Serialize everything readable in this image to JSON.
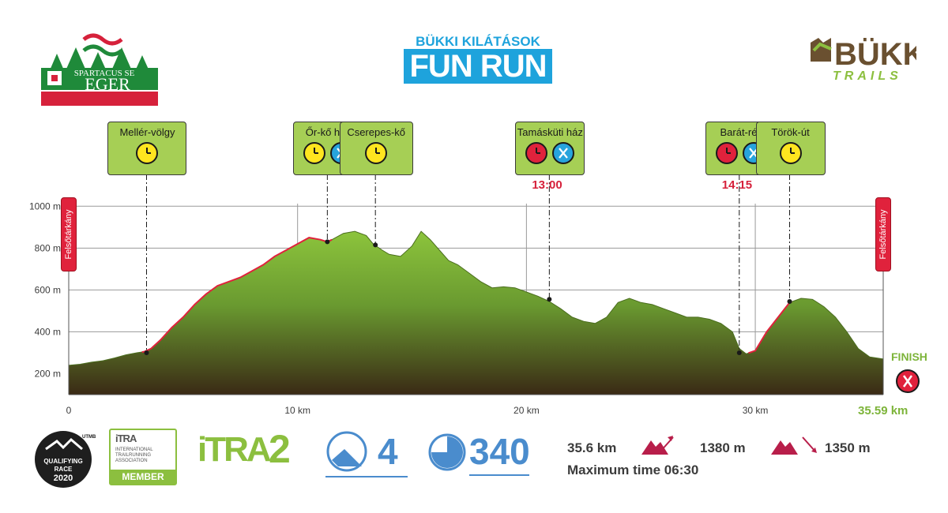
{
  "header": {
    "club_logo": {
      "text_1": "SPARTACUS SE",
      "text_2": "EGER"
    },
    "title_sub": "BÜKKI KILÁTÁSOK",
    "title_main": "FUN RUN",
    "trails_logo": {
      "text_1": "BÜKK",
      "text_2": "TRAILS"
    }
  },
  "colors": {
    "profile_top": "#8cc43c",
    "profile_bottom": "#3a2a15",
    "climb_line": "#e0223c",
    "checkpoint_bg": "#a6cf55",
    "time_check_yellow": "#ffe51f",
    "cutoff_red": "#e0223c",
    "refreshment_blue": "#27a4dd",
    "itra_green": "#8cbf3f",
    "badge_blue": "#4a8ccd"
  },
  "chart_data": {
    "type": "area",
    "title": "",
    "xlabel": "",
    "ylabel": "",
    "x_unit": "km",
    "y_unit": "m",
    "xlim": [
      0,
      35.59
    ],
    "ylim": [
      100,
      1050
    ],
    "x_ticks": [
      0,
      10,
      20,
      30
    ],
    "x_tick_labels": [
      "0",
      "10 km",
      "20 km",
      "30 km"
    ],
    "y_ticks": [
      200,
      400,
      600,
      800,
      1000
    ],
    "y_tick_labels": [
      "200 m",
      "400 m",
      "600 m",
      "800 m",
      "1000 m"
    ],
    "grid": true,
    "series": [
      {
        "x": [
          0,
          0.5,
          1,
          1.5,
          2,
          2.5,
          3,
          3.3,
          3.6,
          4,
          4.5,
          5,
          5.5,
          6,
          6.5,
          7,
          7.5,
          8,
          8.5,
          9,
          9.5,
          10,
          10.5,
          11,
          11.3,
          11.5,
          12,
          12.5,
          13,
          13.3,
          13.7,
          14,
          14.5,
          15,
          15.4,
          15.8,
          16.2,
          16.6,
          17,
          17.5,
          18,
          18.5,
          19,
          19.5,
          20,
          20.5,
          21,
          21.5,
          22,
          22.5,
          23,
          23.5,
          24,
          24.5,
          25,
          25.5,
          26,
          26.5,
          27,
          27.5,
          28,
          28.5,
          29,
          29.3,
          29.6,
          30,
          30.5,
          31,
          31.5,
          32,
          32.5,
          33,
          33.5,
          34,
          34.5,
          35,
          35.59
        ],
        "y": [
          240,
          245,
          255,
          262,
          275,
          290,
          300,
          305,
          320,
          360,
          420,
          470,
          530,
          580,
          620,
          640,
          660,
          690,
          720,
          760,
          790,
          820,
          850,
          840,
          830,
          840,
          870,
          880,
          860,
          820,
          790,
          770,
          760,
          810,
          880,
          840,
          790,
          740,
          720,
          680,
          640,
          610,
          615,
          610,
          590,
          570,
          545,
          510,
          470,
          450,
          440,
          470,
          540,
          560,
          540,
          530,
          510,
          490,
          470,
          470,
          460,
          440,
          400,
          320,
          295,
          310,
          400,
          470,
          540,
          560,
          555,
          520,
          470,
          400,
          320,
          280,
          270
        ]
      }
    ],
    "climb_segments": [
      [
        3.2,
        11.5
      ],
      [
        29.7,
        31.6
      ]
    ],
    "towns": [
      {
        "label": "Felsőtárkány",
        "x": 0
      },
      {
        "label": "Felsőtárkány",
        "x": 35.59
      }
    ],
    "checkpoints": [
      {
        "name": "Mellér-völgy",
        "x": 3.4,
        "elev": 300,
        "icons": [
          "time-check"
        ]
      },
      {
        "name": "Őr-kő ház",
        "x": 11.3,
        "elev": 830,
        "icons": [
          "time-check",
          "refreshment"
        ]
      },
      {
        "name": "Cserepes-kő",
        "x": 13.4,
        "elev": 815,
        "icons": [
          "time-check"
        ]
      },
      {
        "name": "Tamásküti ház",
        "x": 21.0,
        "elev": 555,
        "icons": [
          "cutoff",
          "refreshment"
        ],
        "cutoff": "13:00"
      },
      {
        "name": "Barát-rét",
        "x": 29.3,
        "elev": 300,
        "icons": [
          "cutoff",
          "refreshment"
        ],
        "cutoff": "14:15"
      },
      {
        "name": "Török-út",
        "x": 31.5,
        "elev": 545,
        "icons": [
          "time-check"
        ]
      }
    ],
    "finish_label": "FINISH",
    "total_distance_label": "35.59 km"
  },
  "footer": {
    "utmb": {
      "brand": "UTMB",
      "line1": "QUALIFYING",
      "line2": "RACE",
      "year": "2020"
    },
    "itra_member": {
      "logo": "iTRA",
      "line1": "INTERNATIONAL",
      "line2": "TRAILRUNNING",
      "line3": "ASSOCIATION",
      "bar": "MEMBER"
    },
    "itra_points_logo": "iTRA",
    "itra_points": "2",
    "mountain_level": "4",
    "endurance_points": "340",
    "distance": "35.6 km",
    "ascent": "1380 m",
    "descent": "1350 m",
    "max_time": "Maximum time 06:30"
  }
}
